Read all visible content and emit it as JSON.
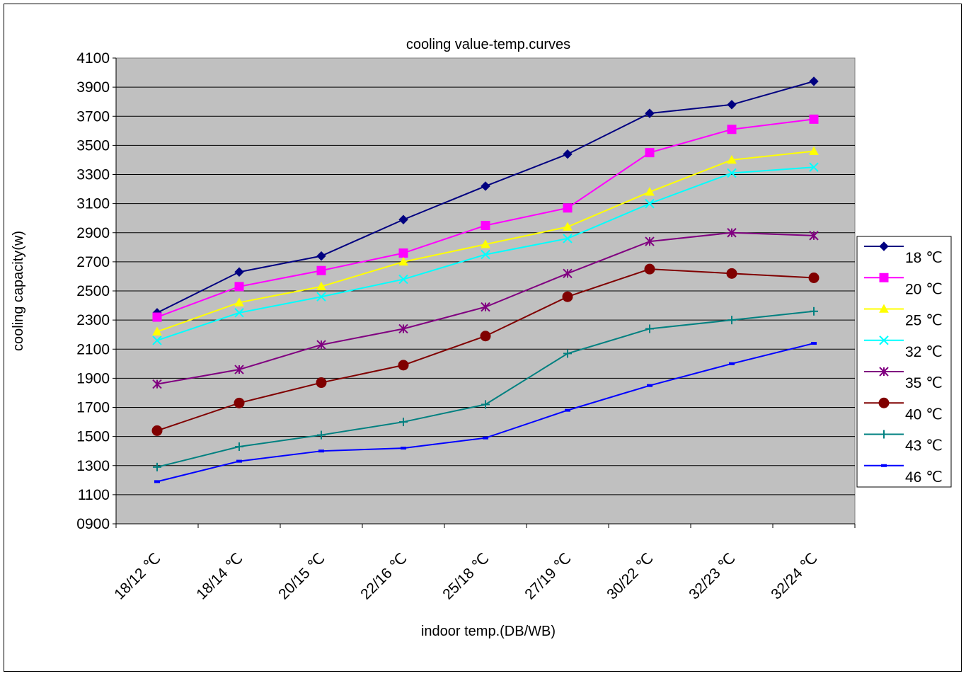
{
  "chart_data": {
    "type": "line",
    "title": "cooling value-temp.curves",
    "xlabel": "indoor temp.(DB/WB)",
    "ylabel": "cooling capacity(w)",
    "ylim": [
      900,
      4100
    ],
    "yticks": [
      "0900",
      "1100",
      "1300",
      "1500",
      "1700",
      "1900",
      "2100",
      "2300",
      "2500",
      "2700",
      "2900",
      "3100",
      "3300",
      "3500",
      "3700",
      "3900",
      "4100"
    ],
    "grid": "horizontal",
    "legend_position": "right",
    "categories": [
      "18/12 ℃",
      "18/14 ℃",
      "20/15 ℃",
      "22/16 ℃",
      "25/18 ℃",
      "27/19 ℃",
      "30/22 ℃",
      "32/23 ℃",
      "32/24 ℃"
    ],
    "series": [
      {
        "name": "18 ℃",
        "color": "#000080",
        "marker": "diamond",
        "values": [
          2350,
          2630,
          2740,
          2990,
          3220,
          3440,
          3720,
          3780,
          3940
        ]
      },
      {
        "name": "20 ℃",
        "color": "#ff00ff",
        "marker": "square",
        "values": [
          2320,
          2530,
          2640,
          2760,
          2950,
          3070,
          3450,
          3610,
          3680
        ]
      },
      {
        "name": "25 ℃",
        "color": "#ffff00",
        "marker": "triangle",
        "values": [
          2220,
          2420,
          2530,
          2700,
          2820,
          2940,
          3180,
          3400,
          3460
        ]
      },
      {
        "name": "32 ℃",
        "color": "#00ffff",
        "marker": "x",
        "values": [
          2160,
          2350,
          2460,
          2580,
          2750,
          2860,
          3100,
          3310,
          3350
        ]
      },
      {
        "name": "35 ℃",
        "color": "#800080",
        "marker": "star",
        "values": [
          1860,
          1960,
          2130,
          2240,
          2390,
          2620,
          2840,
          2900,
          2880
        ]
      },
      {
        "name": "40 ℃",
        "color": "#800000",
        "marker": "circle",
        "values": [
          1540,
          1730,
          1870,
          1990,
          2190,
          2460,
          2650,
          2620,
          2590
        ]
      },
      {
        "name": "43 ℃",
        "color": "#008080",
        "marker": "plus",
        "values": [
          1290,
          1430,
          1510,
          1600,
          1720,
          2070,
          2240,
          2300,
          2360
        ]
      },
      {
        "name": "46 ℃",
        "color": "#0000ff",
        "marker": "dash",
        "values": [
          1190,
          1330,
          1400,
          1420,
          1490,
          1680,
          1850,
          2000,
          2140
        ]
      }
    ]
  }
}
